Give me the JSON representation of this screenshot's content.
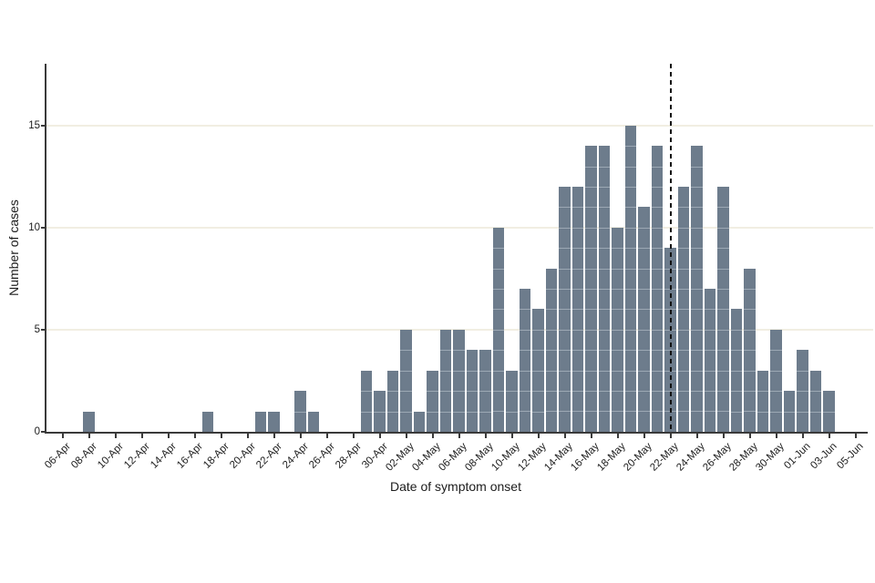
{
  "chart_data": {
    "type": "bar",
    "title": "",
    "xlabel": "Date of symptom onset",
    "ylabel": "Number of cases",
    "ylim": [
      0,
      18
    ],
    "yticks": [
      0,
      5,
      10,
      15
    ],
    "grid": "horizontal",
    "legend": "none",
    "categories": [
      "06-Apr",
      "07-Apr",
      "08-Apr",
      "09-Apr",
      "10-Apr",
      "11-Apr",
      "12-Apr",
      "13-Apr",
      "14-Apr",
      "15-Apr",
      "16-Apr",
      "17-Apr",
      "18-Apr",
      "19-Apr",
      "20-Apr",
      "21-Apr",
      "22-Apr",
      "23-Apr",
      "24-Apr",
      "25-Apr",
      "26-Apr",
      "27-Apr",
      "28-Apr",
      "29-Apr",
      "30-Apr",
      "01-May",
      "02-May",
      "03-May",
      "04-May",
      "05-May",
      "06-May",
      "07-May",
      "08-May",
      "09-May",
      "10-May",
      "11-May",
      "12-May",
      "13-May",
      "14-May",
      "15-May",
      "16-May",
      "17-May",
      "18-May",
      "19-May",
      "20-May",
      "21-May",
      "22-May",
      "23-May",
      "24-May",
      "25-May",
      "26-May",
      "27-May",
      "28-May",
      "29-May",
      "30-May",
      "31-May",
      "01-Jun",
      "02-Jun",
      "03-Jun",
      "04-Jun",
      "05-Jun"
    ],
    "values": [
      0,
      0,
      1,
      0,
      0,
      0,
      0,
      0,
      0,
      0,
      0,
      1,
      0,
      0,
      0,
      1,
      1,
      0,
      2,
      1,
      0,
      0,
      0,
      3,
      2,
      3,
      5,
      1,
      3,
      5,
      5,
      4,
      4,
      10,
      3,
      7,
      6,
      8,
      12,
      12,
      14,
      14,
      10,
      15,
      11,
      14,
      9,
      12,
      14,
      7,
      12,
      6,
      8,
      3,
      5,
      2,
      4,
      3,
      2,
      0,
      0
    ],
    "x_tick_labels": [
      "06-Apr",
      "08-Apr",
      "10-Apr",
      "12-Apr",
      "14-Apr",
      "16-Apr",
      "18-Apr",
      "20-Apr",
      "22-Apr",
      "24-Apr",
      "26-Apr",
      "28-Apr",
      "30-Apr",
      "02-May",
      "04-May",
      "06-May",
      "08-May",
      "10-May",
      "12-May",
      "14-May",
      "16-May",
      "18-May",
      "20-May",
      "22-May",
      "24-May",
      "26-May",
      "28-May",
      "30-May",
      "01-Jun",
      "03-Jun",
      "05-Jun"
    ],
    "annotations": [
      {
        "type": "vline",
        "x": "22-May",
        "style": "dashed"
      }
    ],
    "colors": {
      "bar_fill": "#6d7c8c",
      "bar_divider": "#9ca8b4",
      "bar_gap": "#ffffff",
      "gridline": "#f1eee2",
      "axis": "#3a3a3a",
      "tick": "#3a3a3a",
      "text": "#1c1c1c",
      "vline": "#111111",
      "background": "#ffffff"
    }
  }
}
